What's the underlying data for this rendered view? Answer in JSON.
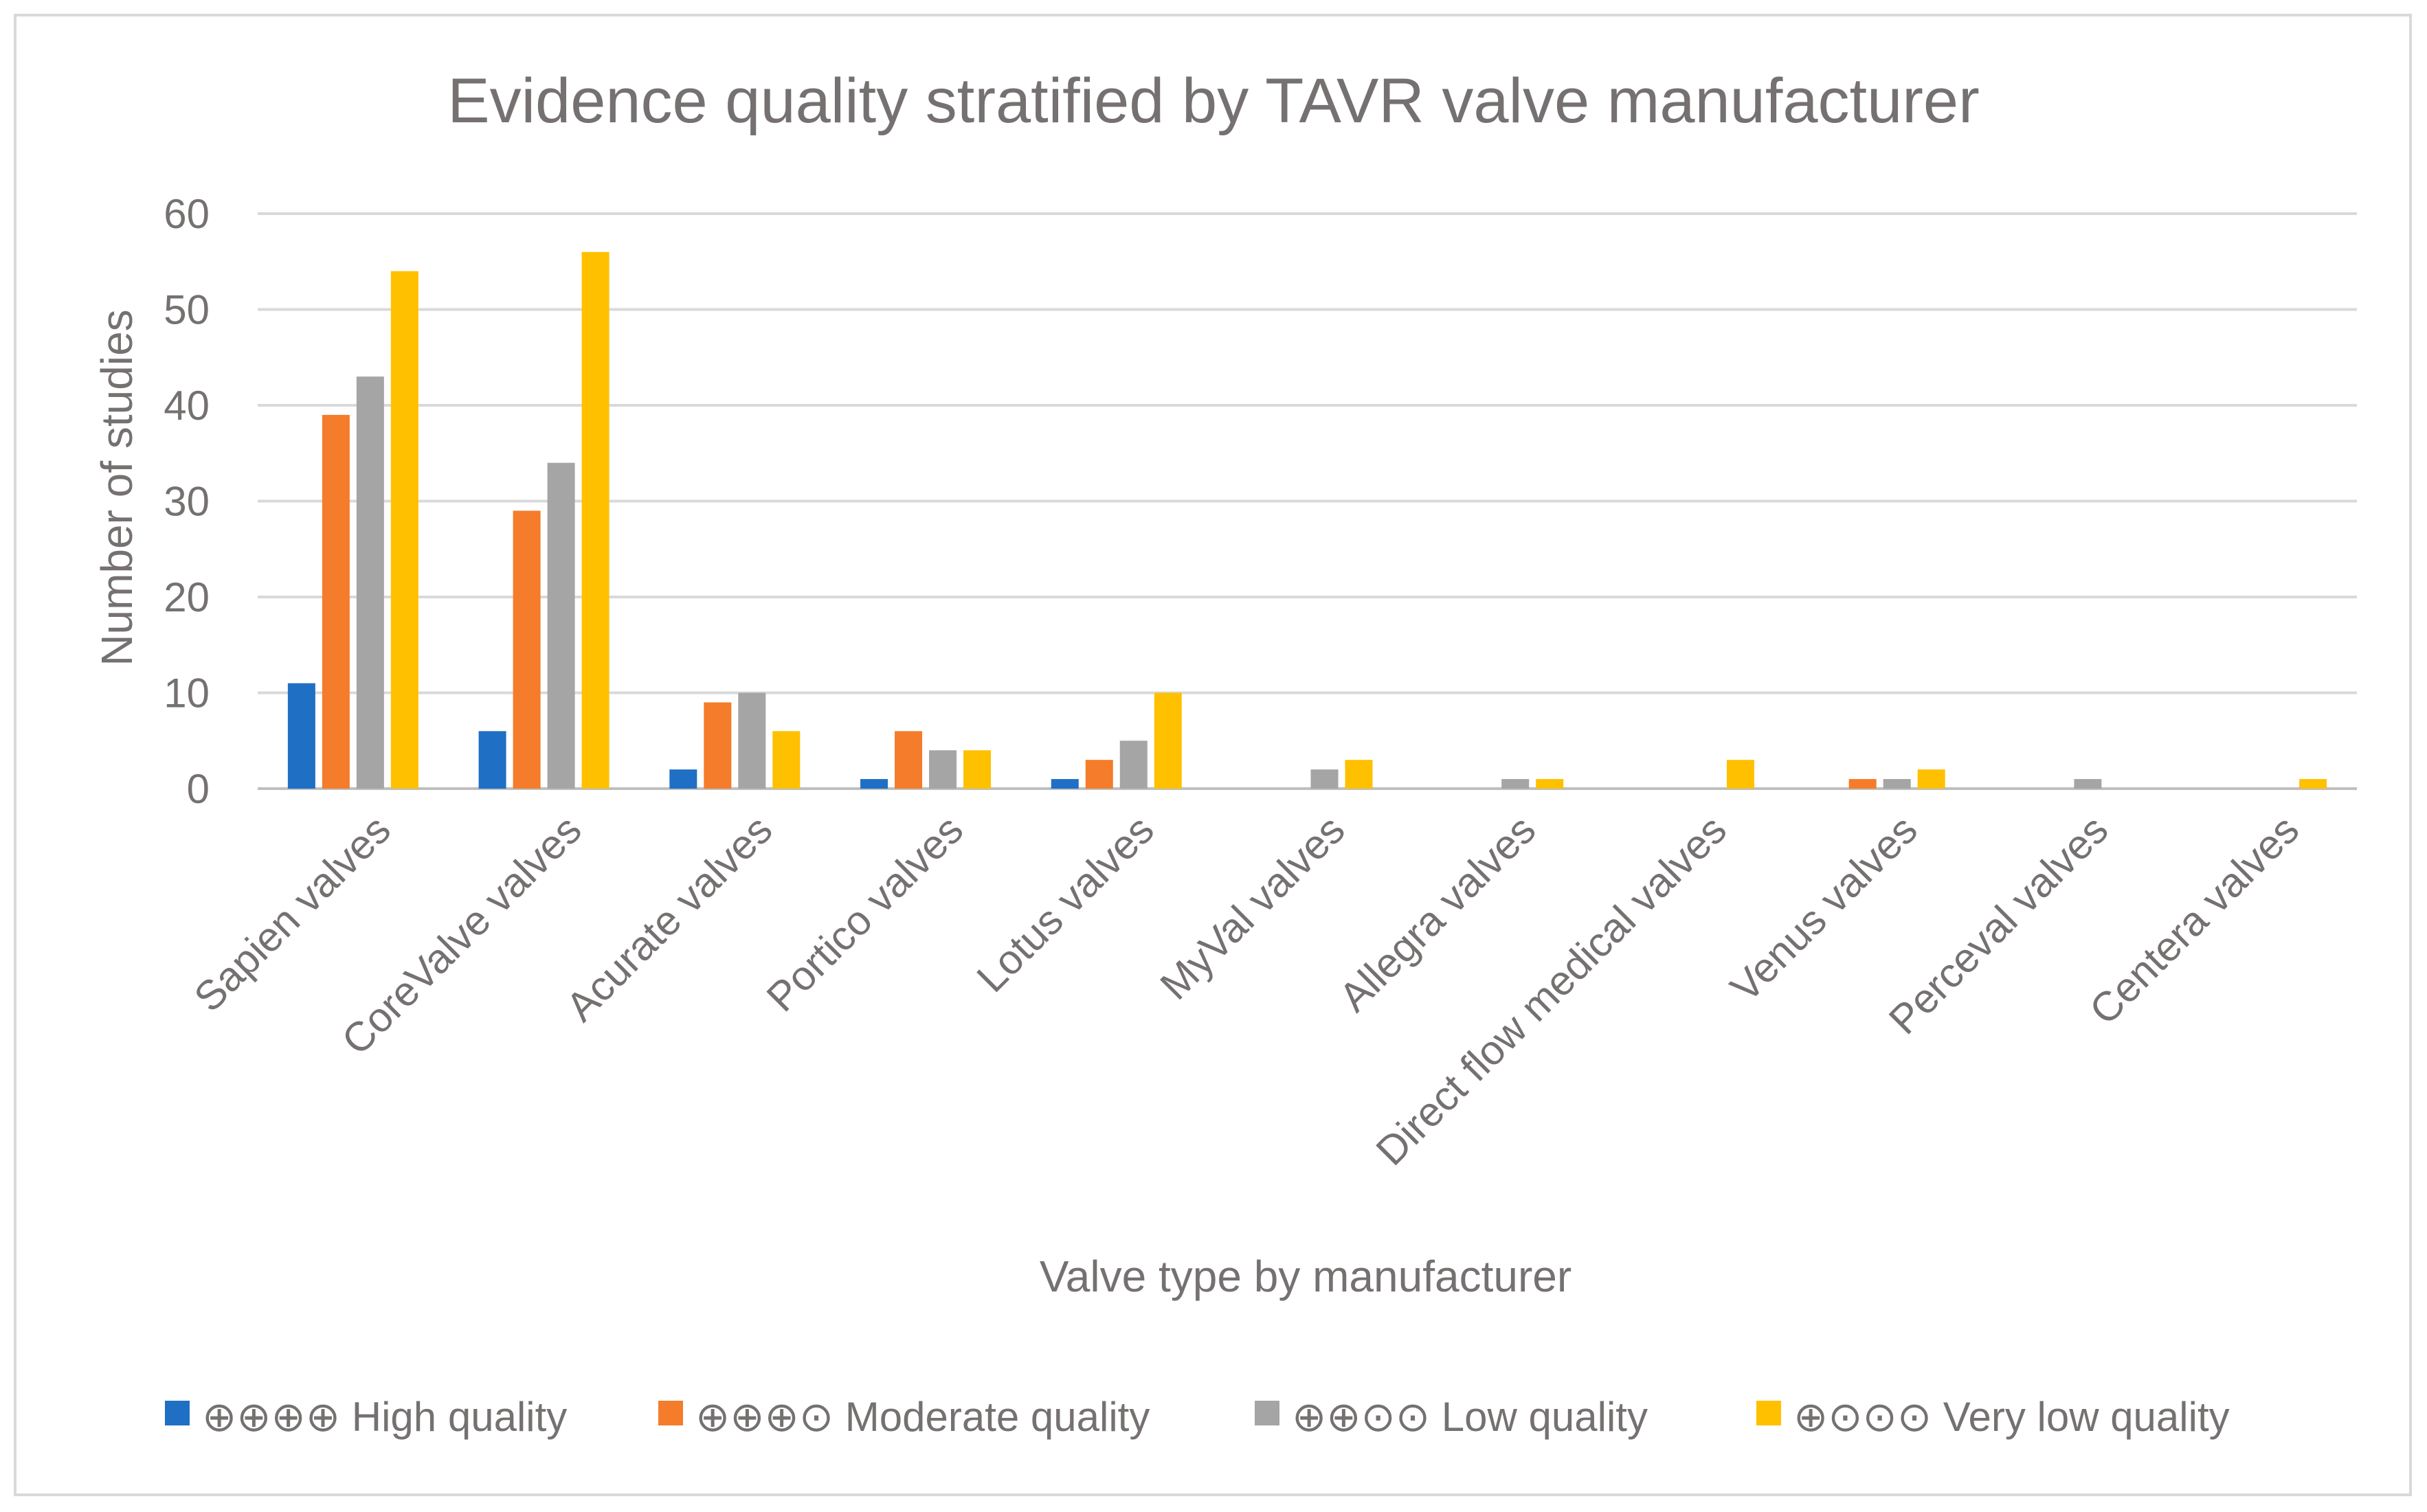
{
  "chart_data": {
    "type": "bar",
    "title": "Evidence quality stratified by TAVR valve manufacturer",
    "xlabel": "Valve type by manufacturer",
    "ylabel": "Number of studies",
    "ylim": [
      0,
      60
    ],
    "yticks": [
      0,
      10,
      20,
      30,
      40,
      50,
      60
    ],
    "grid": true,
    "legend_position": "bottom",
    "categories": [
      "Sapien valves",
      "CoreValve valves",
      "Acurate valves",
      "Portico valves",
      "Lotus valves",
      "MyVal valves",
      "Allegra valves",
      "Direct flow medical valves",
      "Venus valves",
      "Perceval valves",
      "Centera valves"
    ],
    "series": [
      {
        "name": "⊕⊕⊕⊕  High quality",
        "color": "#1f6fc5",
        "values": [
          11,
          6,
          2,
          1,
          1,
          0,
          0,
          0,
          0,
          0,
          0
        ]
      },
      {
        "name": "⊕⊕⊕⊙  Moderate quality",
        "color": "#f47c2a",
        "values": [
          39,
          29,
          9,
          6,
          3,
          0,
          0,
          0,
          1,
          0,
          0
        ]
      },
      {
        "name": "⊕⊕⊙⊙  Low quality",
        "color": "#a5a5a5",
        "values": [
          43,
          34,
          10,
          4,
          5,
          2,
          1,
          0,
          1,
          1,
          0
        ]
      },
      {
        "name": "⊕⊙⊙⊙  Very low quality",
        "color": "#ffc000",
        "values": [
          54,
          56,
          6,
          4,
          10,
          3,
          1,
          3,
          2,
          0,
          1
        ]
      }
    ]
  },
  "colors": {
    "text": "#767171",
    "grid": "#d9d9d9",
    "axis": "#bfbfbf"
  }
}
